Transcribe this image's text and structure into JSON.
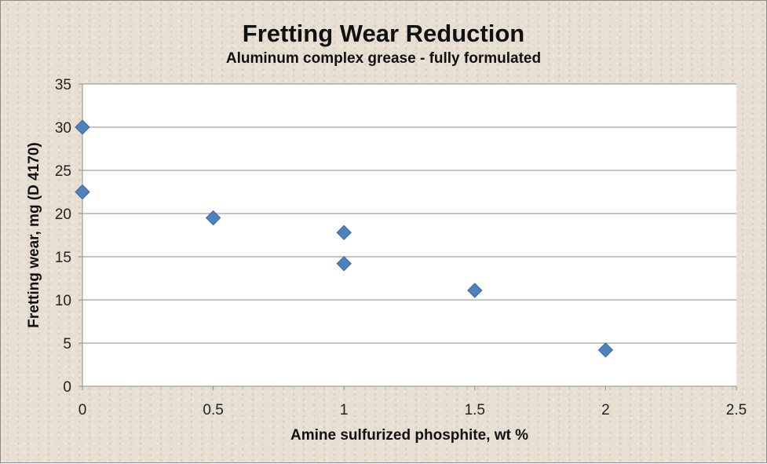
{
  "chart_data": {
    "type": "scatter",
    "title": "Fretting Wear Reduction",
    "subtitle": "Aluminum complex grease - fully formulated",
    "xlabel": "Amine sulfurized phosphite,  wt %",
    "ylabel": "Fretting wear, mg (D 4170)",
    "xlim": [
      0,
      2.5
    ],
    "ylim": [
      0,
      35
    ],
    "xticks": [
      "0",
      "0.5",
      "1",
      "1.5",
      "2",
      "2.5"
    ],
    "yticks": [
      "0",
      "5",
      "10",
      "15",
      "20",
      "25",
      "30",
      "35"
    ],
    "grid": "horizontal",
    "legend": "none",
    "marker": "diamond",
    "colors": {
      "marker": "#4f81bd",
      "marker_edge": "#3a6aa6",
      "plot_background": "#ffffff",
      "gridline": "#8c8c8c",
      "chart_background": "#e7dfd2"
    },
    "series": [
      {
        "x": [
          0,
          0,
          0.5,
          1,
          1,
          1.5,
          2
        ],
        "y": [
          30,
          22.5,
          19.5,
          17.8,
          14.2,
          11.1,
          4.2
        ]
      }
    ]
  }
}
